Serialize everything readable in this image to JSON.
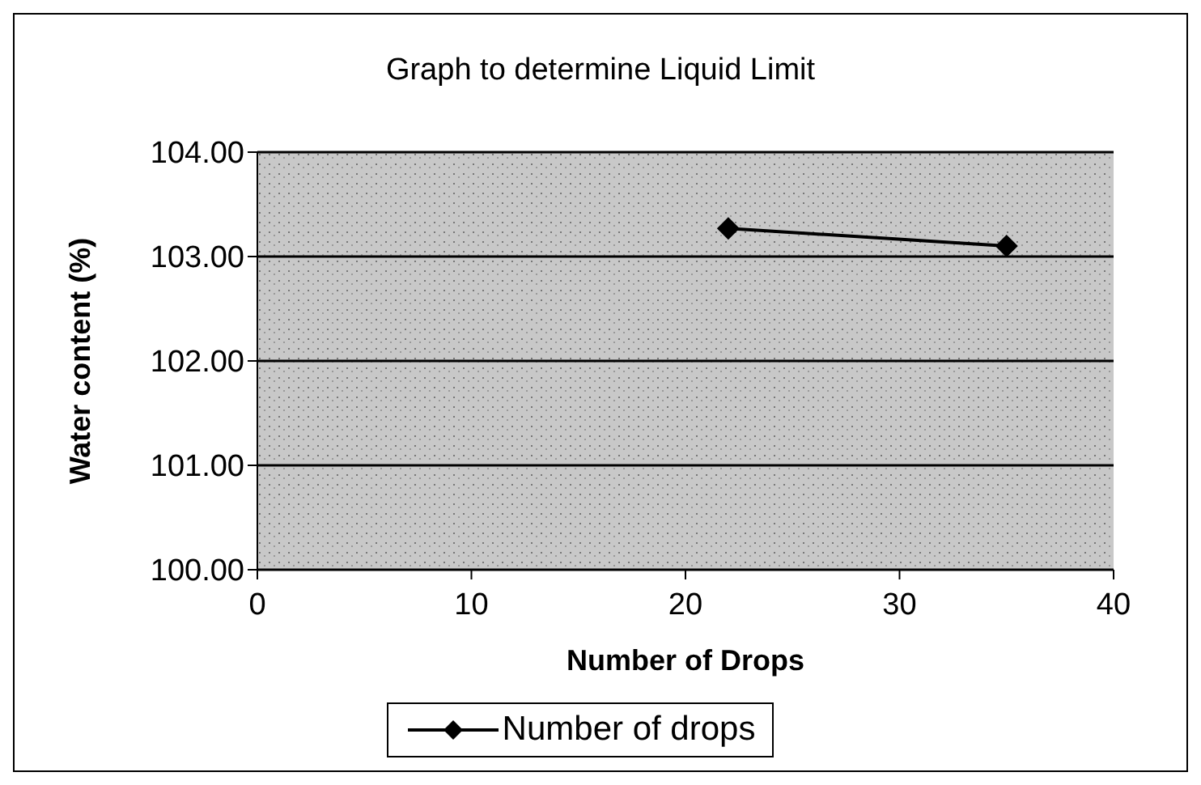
{
  "chart_data": {
    "type": "line",
    "title": "Graph to determine Liquid Limit",
    "xlabel": "Number of Drops",
    "ylabel": "Water content (%)",
    "series": [
      {
        "name": "Number of drops",
        "color": "#000000",
        "x": [
          22,
          35
        ],
        "values": [
          103.27,
          103.1
        ]
      }
    ],
    "xlim": [
      0,
      40
    ],
    "xticks": [
      0,
      10,
      20,
      30,
      40
    ],
    "ylim": [
      100,
      104
    ],
    "yticks": [
      {
        "value": 100,
        "label": "100.00"
      },
      {
        "value": 101,
        "label": "101.00"
      },
      {
        "value": 102,
        "label": "102.00"
      },
      {
        "value": 103,
        "label": "103.00"
      },
      {
        "value": 104,
        "label": "104.00"
      }
    ],
    "grid": "y",
    "legend": "bottom",
    "marker": "diamond"
  }
}
